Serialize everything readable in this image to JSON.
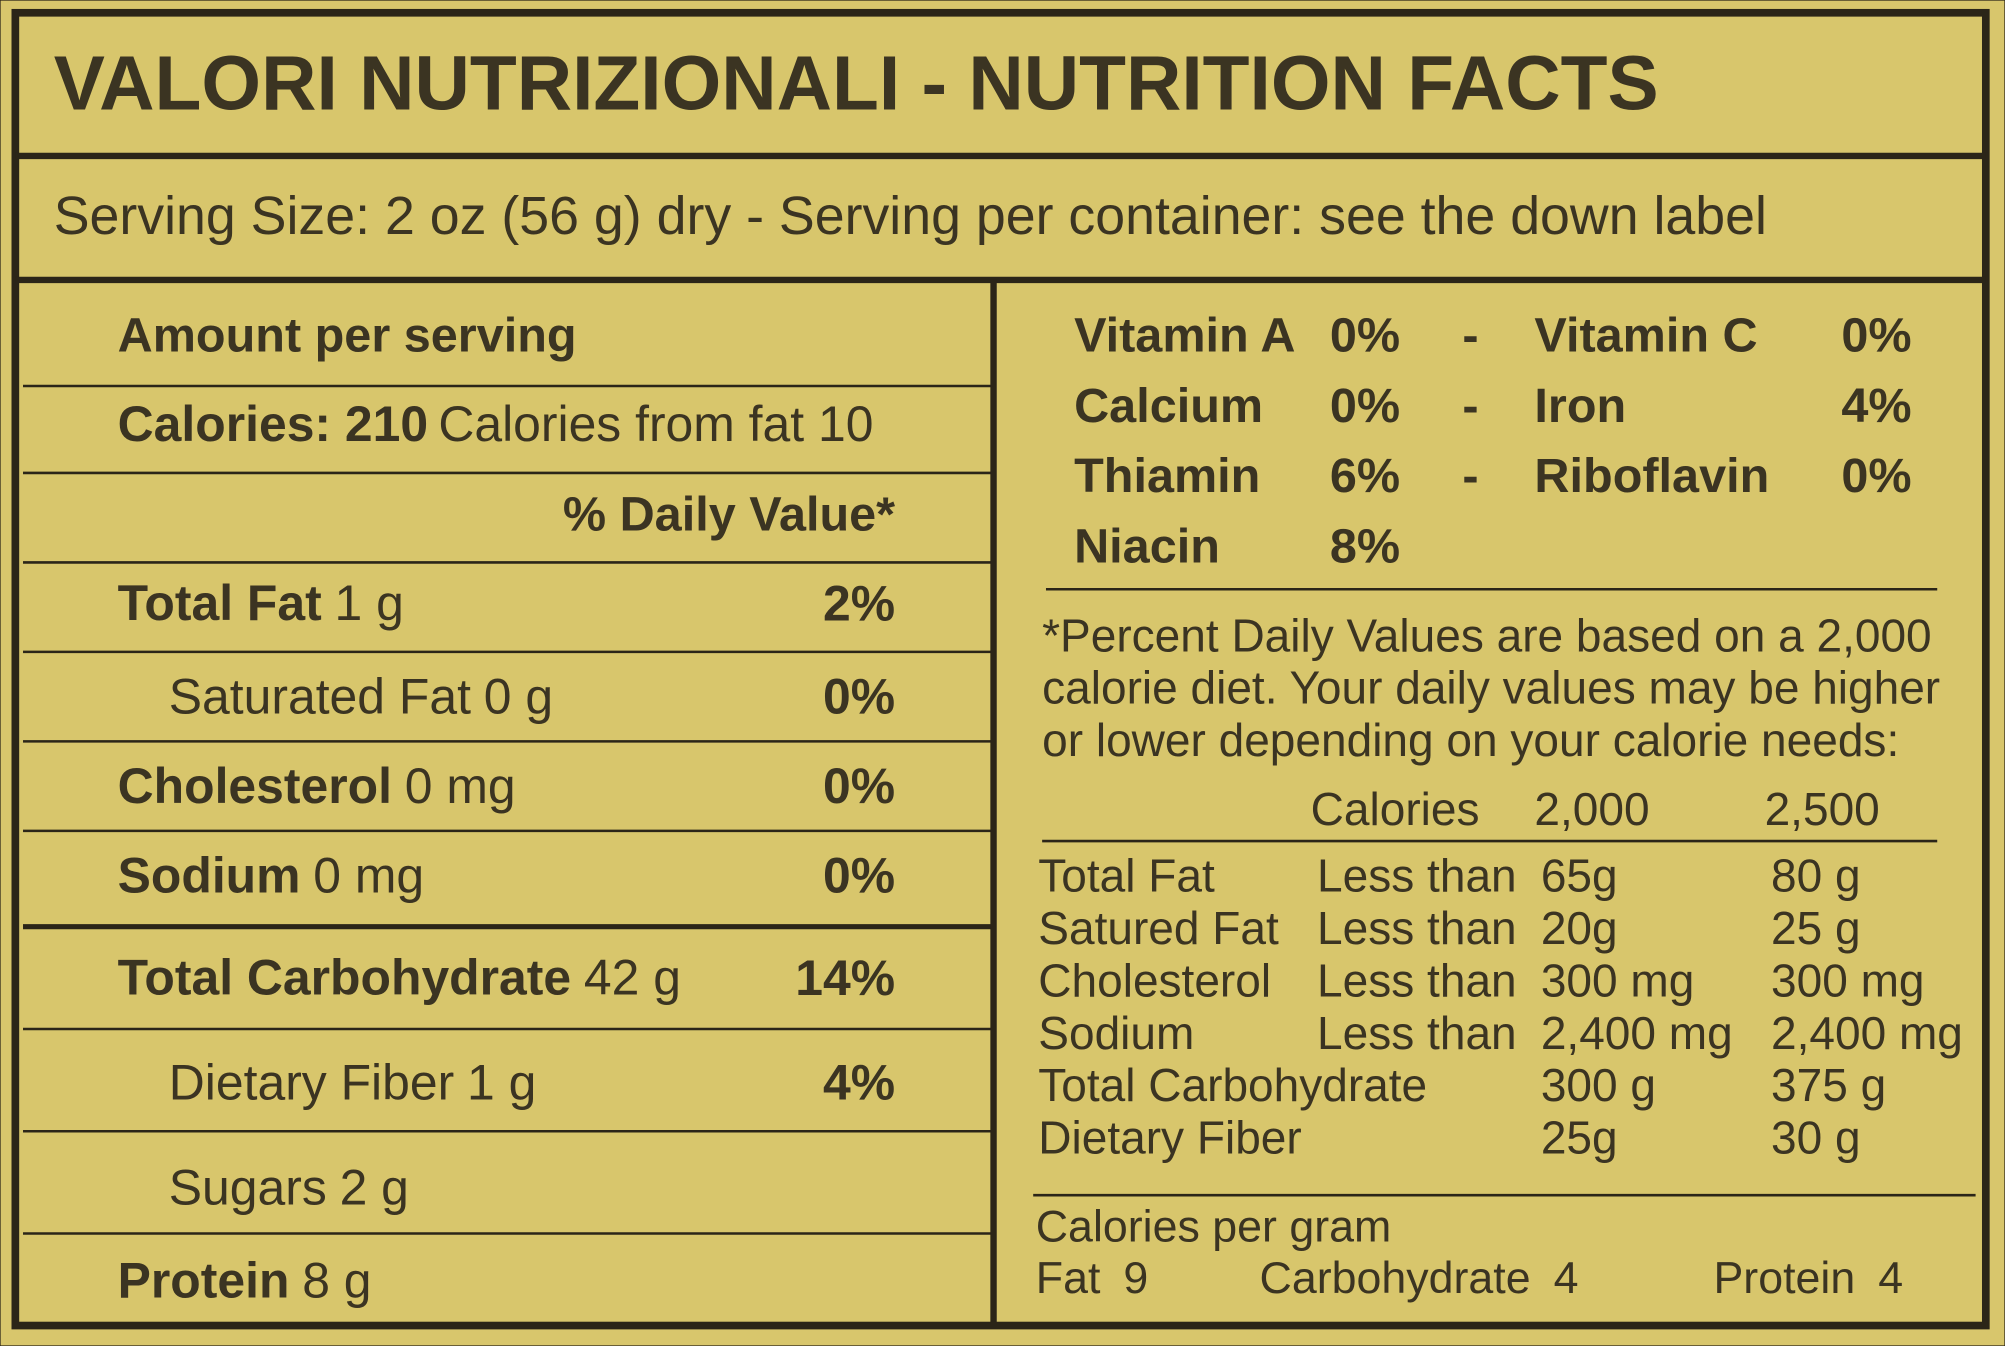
{
  "title": "VALORI NUTRIZIONALI - NUTRITION FACTS",
  "serving": "Serving Size: 2 oz (56 g) dry - Serving per container: see the down label",
  "left": {
    "header": "Amount per serving",
    "calories": {
      "label": "Calories: 210",
      "detail": "Calories from fat 10"
    },
    "dv_header": "% Daily Value*",
    "nutrients": [
      {
        "label": "Total Fat",
        "amount": "1 g",
        "dv": "2%",
        "bold": true
      },
      {
        "label": "Saturated Fat",
        "amount": "0 g",
        "dv": "0%",
        "bold": false
      },
      {
        "label": "Cholesterol",
        "amount": "0 mg",
        "dv": "0%",
        "bold": true
      },
      {
        "label": "Sodium",
        "amount": "0 mg",
        "dv": "0%",
        "bold": true
      },
      {
        "label": "Total Carbohydrate",
        "amount": "42 g",
        "dv": "14%",
        "bold": true
      },
      {
        "label": "Dietary Fiber",
        "amount": "1 g",
        "dv": "4%",
        "bold": false
      },
      {
        "label": "Sugars",
        "amount": "2 g",
        "bold": false
      },
      {
        "label": "Protein",
        "amount": "8 g",
        "bold": true
      }
    ]
  },
  "right": {
    "separator": "-",
    "vitamins": [
      [
        {
          "name": "Vitamin A",
          "value": "0%"
        },
        {
          "name": "Vitamin C",
          "value": "0%"
        }
      ],
      [
        {
          "name": "Calcium",
          "value": "0%"
        },
        {
          "name": "Iron",
          "value": "4%"
        }
      ],
      [
        {
          "name": "Thiamin",
          "value": "6%"
        },
        {
          "name": "Riboflavin",
          "value": "0%"
        }
      ],
      [
        {
          "name": "Niacin",
          "value": "8%"
        }
      ]
    ],
    "footnote": [
      "*Percent Daily Values are based on a 2,000",
      "calorie diet. Your daily values may be higher",
      "or lower depending on your calorie needs:"
    ],
    "reference": {
      "header": [
        "Calories",
        "2,000",
        "2,500"
      ],
      "rows": [
        {
          "nutrient": "Total Fat",
          "limit": "Less than",
          "values": [
            "65g",
            "80 g"
          ]
        },
        {
          "nutrient": "Satured Fat",
          "limit": "Less than",
          "values": [
            "20g",
            "25 g"
          ]
        },
        {
          "nutrient": "Cholesterol",
          "limit": "Less than",
          "values": [
            "300 mg",
            "300 mg"
          ]
        },
        {
          "nutrient": "Sodium",
          "limit": "Less than",
          "values": [
            "2,400 mg",
            "2,400 mg"
          ]
        },
        {
          "nutrient": "Total Carbohydrate",
          "values": [
            "300 g",
            "375 g"
          ]
        },
        {
          "nutrient": "Dietary Fiber",
          "values": [
            "25g",
            "30 g"
          ]
        }
      ]
    },
    "calories_per_gram": {
      "label": "Calories per gram",
      "items": [
        {
          "name": "Fat",
          "value": 9
        },
        {
          "name": "Carbohydrate",
          "value": 4
        },
        {
          "name": "Protein",
          "value": 4
        }
      ]
    }
  }
}
